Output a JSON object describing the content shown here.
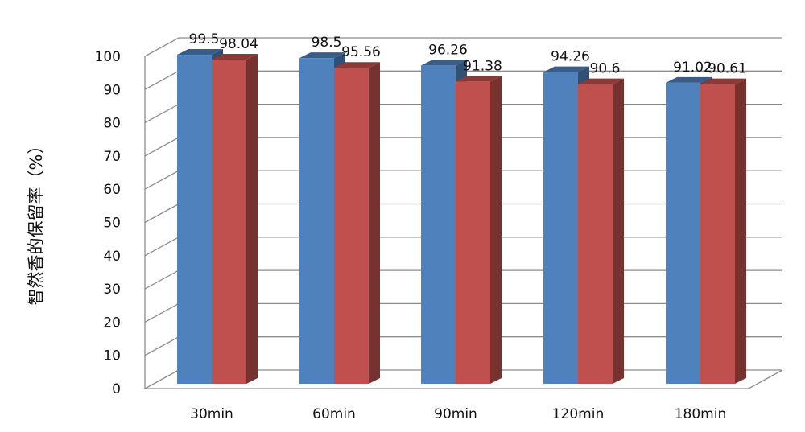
{
  "chart_data": {
    "type": "bar",
    "style": "3d-clustered-column",
    "categories": [
      "30min",
      "60min",
      "90min",
      "120min",
      "180min"
    ],
    "series": [
      {
        "values": [
          99.5,
          98.5,
          96.26,
          94.26,
          91.02
        ],
        "color": "#4F81BD"
      },
      {
        "values": [
          98.04,
          95.56,
          91.38,
          90.6,
          90.61
        ],
        "color": "#C0504D"
      }
    ],
    "data_labels": [
      [
        "99.5",
        "98.5",
        "96.26",
        "94.26",
        "91.02"
      ],
      [
        "98.04",
        "95.56",
        "91.38",
        "90.6",
        "90.61"
      ]
    ],
    "title": "",
    "xlabel": "",
    "ylabel": "智然香的保留率（%）",
    "ylim": [
      0,
      100
    ],
    "yticks": [
      0,
      10,
      20,
      30,
      40,
      50,
      60,
      70,
      80,
      90,
      100
    ],
    "grid": true,
    "legend": "none"
  }
}
